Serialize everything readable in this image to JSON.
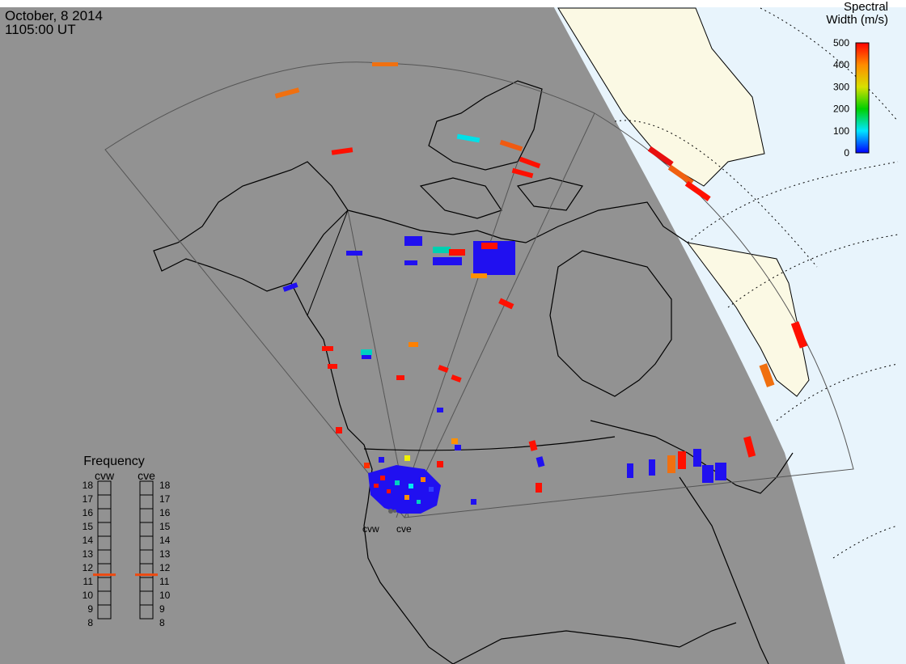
{
  "header": {
    "date": "October, 8 2014",
    "time": "1105:00 UT"
  },
  "colorbar": {
    "title_line1": "Spectral",
    "title_line2": "Width (m/s)",
    "ticks": [
      "500",
      "400",
      "300",
      "200",
      "100",
      "0"
    ],
    "min": 0,
    "max": 500
  },
  "frequency": {
    "title": "Frequency",
    "radars": [
      {
        "name": "cvw",
        "current": 10.7,
        "ticks": [
          "18",
          "17",
          "16",
          "15",
          "14",
          "13",
          "12",
          "11",
          "10",
          "9",
          "8"
        ]
      },
      {
        "name": "cve",
        "current": 10.7,
        "ticks": [
          "18",
          "17",
          "16",
          "15",
          "14",
          "13",
          "12",
          "11",
          "10",
          "9",
          "8"
        ]
      }
    ],
    "min": 8,
    "max": 18
  },
  "sites": [
    {
      "name": "cvw"
    },
    {
      "name": "cve"
    }
  ],
  "colors": {
    "night": "#929292",
    "day_land": "#fbf9e4",
    "day_ocean": "#e8f4fc",
    "coast": "#000000",
    "fov_outline": "#555555",
    "freq_marker": "#ee4a10"
  },
  "scatter_sample_widths_ms": [
    450,
    380,
    90,
    30,
    60,
    480,
    420,
    310,
    100,
    10
  ]
}
